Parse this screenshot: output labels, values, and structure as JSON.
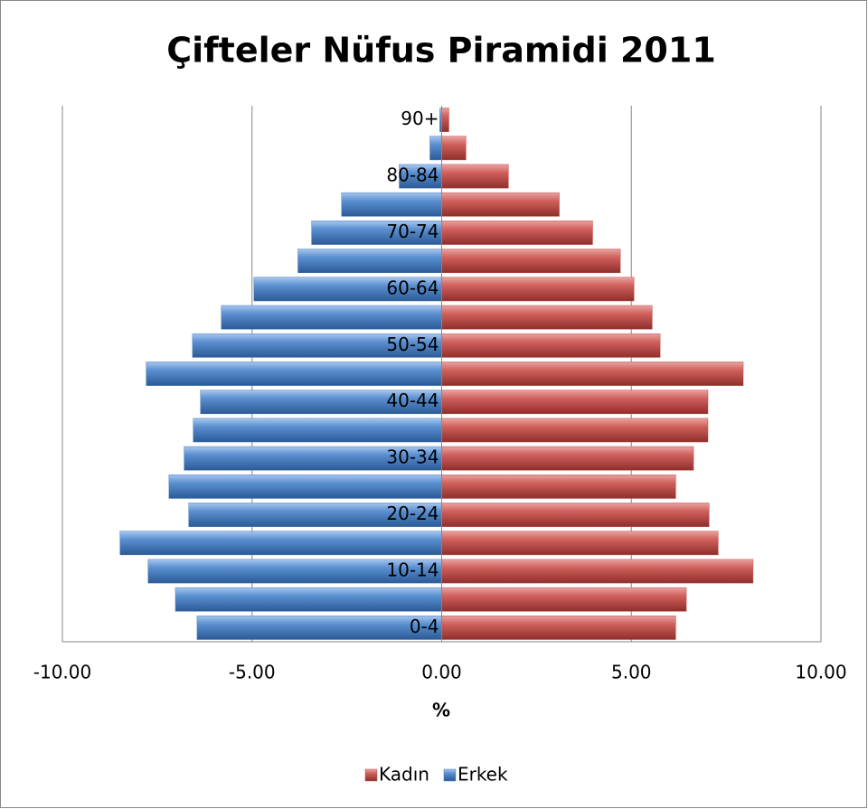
{
  "chart_data": {
    "type": "bar",
    "orientation": "horizontal",
    "stacked": true,
    "title": "Çifteler Nüfus Piramidi 2011",
    "xlabel": "%",
    "categories": [
      "0-4",
      null,
      "10-14",
      null,
      "20-24",
      null,
      "30-34",
      null,
      "40-44",
      null,
      "50-54",
      null,
      "60-64",
      null,
      "70-74",
      null,
      "80-84",
      null,
      "90+"
    ],
    "series": [
      {
        "name": "Kadın",
        "color": "#c0504d",
        "values": [
          6.17,
          6.45,
          8.21,
          7.29,
          7.05,
          6.17,
          6.64,
          7.02,
          7.02,
          7.95,
          5.76,
          5.55,
          5.07,
          4.71,
          3.98,
          3.1,
          1.76,
          0.64,
          0.19
        ]
      },
      {
        "name": "Erkek",
        "color": "#4a7ebb",
        "values": [
          -6.45,
          -7.02,
          -7.74,
          -8.48,
          -6.67,
          -7.19,
          -6.79,
          -6.55,
          -6.36,
          -7.79,
          -6.57,
          -5.81,
          -4.95,
          -3.79,
          -3.43,
          -2.64,
          -1.12,
          -0.31,
          -0.05
        ]
      }
    ],
    "xlim": [
      -10,
      10
    ],
    "xticks": [
      {
        "value": -10,
        "label": "-10.00"
      },
      {
        "value": -5,
        "label": "-5.00"
      },
      {
        "value": 0,
        "label": "0.00"
      },
      {
        "value": 5,
        "label": "5.00"
      },
      {
        "value": 10,
        "label": "10.00"
      }
    ],
    "grid": true,
    "legend": "bottom"
  }
}
